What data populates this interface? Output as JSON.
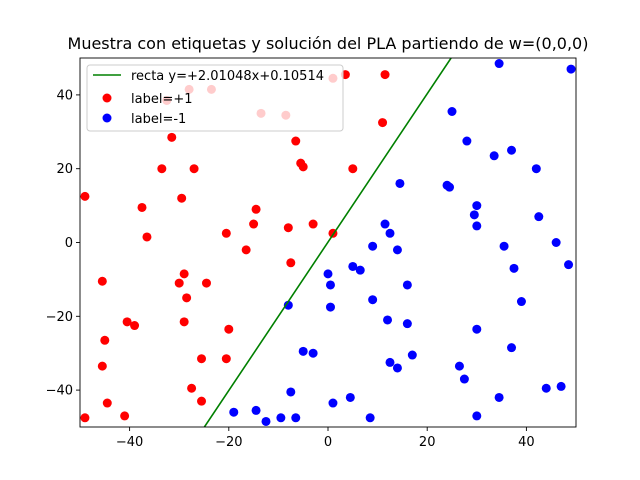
{
  "chart_data": {
    "type": "scatter",
    "title": "Muestra con etiquetas y solución del PLA partiendo de w=(0,0,0)",
    "xlabel": "",
    "ylabel": "",
    "xlim": [
      -50,
      50
    ],
    "ylim": [
      -50,
      50
    ],
    "xticks": [
      -40,
      -20,
      0,
      20,
      40
    ],
    "yticks": [
      -40,
      -20,
      0,
      20,
      40
    ],
    "xtick_labels": [
      "−40",
      "−20",
      "0",
      "20",
      "40"
    ],
    "ytick_labels": [
      "−40",
      "−20",
      "0",
      "20",
      "40"
    ],
    "grid": false,
    "legend_position": "top-left",
    "line": {
      "name": "recta y=+2.01048x+0.10514",
      "slope": 2.01048,
      "intercept": 0.10514,
      "color": "#008000"
    },
    "series": [
      {
        "name": "label=+1",
        "color": "#ff0000",
        "points": [
          [
            -49,
            12.5
          ],
          [
            -49,
            -47.5
          ],
          [
            -45.5,
            -10.5
          ],
          [
            -45.5,
            -33.5
          ],
          [
            -45,
            -26.5
          ],
          [
            -44.5,
            -43.5
          ],
          [
            -41,
            -47
          ],
          [
            -40.5,
            -21.5
          ],
          [
            -39,
            -22.5
          ],
          [
            -37.5,
            9.5
          ],
          [
            -36.5,
            1.5
          ],
          [
            -33.5,
            20
          ],
          [
            -32.5,
            38.5
          ],
          [
            -31.5,
            28.5
          ],
          [
            -30,
            -11
          ],
          [
            -29.5,
            12
          ],
          [
            -29,
            -8.5
          ],
          [
            -29,
            -21.5
          ],
          [
            -28.5,
            -15
          ],
          [
            -28,
            41.5
          ],
          [
            -27.5,
            -39.5
          ],
          [
            -27,
            20
          ],
          [
            -25.5,
            -31.5
          ],
          [
            -25.5,
            -43
          ],
          [
            -24.5,
            -11
          ],
          [
            -23.5,
            41.5
          ],
          [
            -20.5,
            2.5
          ],
          [
            -20.5,
            -31.5
          ],
          [
            -20,
            -23.5
          ],
          [
            -16.5,
            -2
          ],
          [
            -15,
            5
          ],
          [
            -14.5,
            9
          ],
          [
            -13.5,
            35
          ],
          [
            -8.5,
            34.5
          ],
          [
            -8,
            4
          ],
          [
            -7.5,
            -5.5
          ],
          [
            -6.5,
            27.5
          ],
          [
            -5.5,
            21.5
          ],
          [
            -5,
            20.5
          ],
          [
            -3,
            5
          ],
          [
            1,
            2.5
          ],
          [
            1,
            44.5
          ],
          [
            3.5,
            45.5
          ],
          [
            5,
            20
          ],
          [
            11,
            32.5
          ],
          [
            11.5,
            45.5
          ]
        ]
      },
      {
        "name": "label=-1",
        "color": "#0000ff",
        "points": [
          [
            -19,
            -46
          ],
          [
            -14.5,
            -45.5
          ],
          [
            -12.5,
            -48.5
          ],
          [
            -9.5,
            -47.5
          ],
          [
            -8,
            -17
          ],
          [
            -7.5,
            -40.5
          ],
          [
            -6.5,
            -47.5
          ],
          [
            -5,
            -29.5
          ],
          [
            -3,
            -30
          ],
          [
            0,
            -8.5
          ],
          [
            0.5,
            -17.5
          ],
          [
            0.5,
            -11.5
          ],
          [
            1,
            -43.5
          ],
          [
            4.5,
            -42
          ],
          [
            5,
            -6.5
          ],
          [
            6.5,
            -7.5
          ],
          [
            8.5,
            -47.5
          ],
          [
            9,
            -1
          ],
          [
            9,
            -15.5
          ],
          [
            11.5,
            5
          ],
          [
            12,
            -21
          ],
          [
            12.5,
            2.5
          ],
          [
            12.5,
            -32.5
          ],
          [
            14,
            -2
          ],
          [
            14,
            -34
          ],
          [
            14.5,
            16
          ],
          [
            16,
            -22
          ],
          [
            16,
            -11.5
          ],
          [
            17,
            -30.5
          ],
          [
            24,
            15.5
          ],
          [
            24.5,
            15
          ],
          [
            25,
            35.5
          ],
          [
            26.5,
            -33.5
          ],
          [
            27.5,
            -37
          ],
          [
            28,
            27.5
          ],
          [
            29.5,
            7.5
          ],
          [
            30,
            4.5
          ],
          [
            30,
            10
          ],
          [
            30,
            -23.5
          ],
          [
            30,
            -47
          ],
          [
            33.5,
            23.5
          ],
          [
            34.5,
            48.5
          ],
          [
            34.5,
            -42
          ],
          [
            35.5,
            -1
          ],
          [
            37,
            25
          ],
          [
            37,
            -28.5
          ],
          [
            37.5,
            -7
          ],
          [
            39,
            -16
          ],
          [
            42,
            20
          ],
          [
            42.5,
            7
          ],
          [
            44,
            -39.5
          ],
          [
            46,
            0
          ],
          [
            47,
            -39
          ],
          [
            48.5,
            -6
          ],
          [
            49,
            47
          ]
        ]
      }
    ]
  }
}
